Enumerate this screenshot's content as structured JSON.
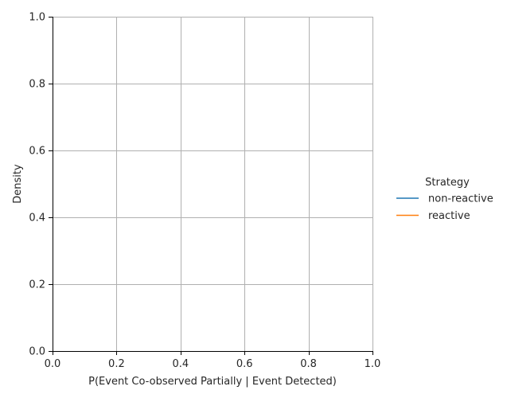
{
  "chart_data": {
    "type": "line",
    "title": "",
    "xlabel": "P(Event Co-observed Partially | Event Detected)",
    "ylabel": "Density",
    "xlim": [
      0.0,
      1.0
    ],
    "ylim": [
      0.0,
      1.0
    ],
    "xticks": [
      0.0,
      0.2,
      0.4,
      0.6,
      0.8,
      1.0
    ],
    "yticks": [
      0.0,
      0.2,
      0.4,
      0.6,
      0.8,
      1.0
    ],
    "xtick_labels": [
      "0.0",
      "0.2",
      "0.4",
      "0.6",
      "0.8",
      "1.0"
    ],
    "ytick_labels": [
      "0.0",
      "0.2",
      "0.4",
      "0.6",
      "0.8",
      "1.0"
    ],
    "grid": true,
    "legend": {
      "title": "Strategy",
      "placement": "right",
      "entries": [
        {
          "label": "non-reactive",
          "color": "#1f77b4"
        },
        {
          "label": "reactive",
          "color": "#ff7f0e"
        }
      ]
    },
    "series": [
      {
        "name": "non-reactive",
        "color": "#1f77b4",
        "x": [],
        "y": []
      },
      {
        "name": "reactive",
        "color": "#ff7f0e",
        "x": [],
        "y": []
      }
    ]
  }
}
